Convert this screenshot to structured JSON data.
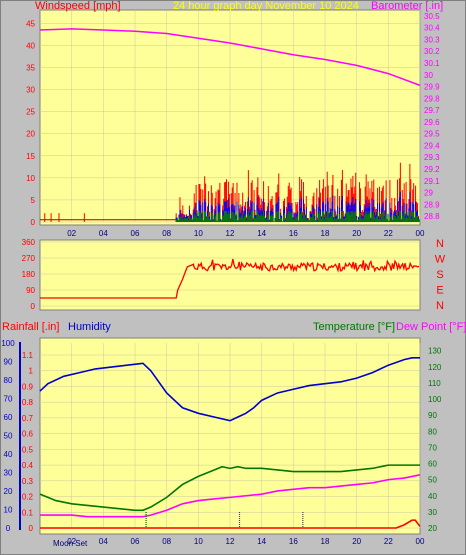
{
  "header": {
    "windspeed_label": "Windspeed [mph]",
    "title": "24 hour graph day   November 10 2024",
    "barometer_label": "Barometer [.in]"
  },
  "footer": {
    "moon_label": "Moon Set"
  },
  "lower_header": {
    "rainfall_label": "Rainfall [.in]",
    "humidity_label": "Humidity",
    "temperature_label": "Temperature [°F]",
    "dewpoint_label": "Dew Point [°F]"
  },
  "colors": {
    "plot_bg": "#ffff99",
    "wind_red": "#ff0000",
    "wind_blue": "#0000ff",
    "wind_green": "#008000",
    "barometer": "#ff00ff",
    "title_yellow": "#ffff00",
    "humidity": "#0000cc",
    "temperature": "#007700",
    "dewpoint": "#ff00ff",
    "frame": "#c0c0c0"
  },
  "chart_data": [
    {
      "type": "line",
      "x_ticks": [
        "02",
        "04",
        "06",
        "08",
        "10",
        "12",
        "14",
        "16",
        "18",
        "20",
        "22",
        "00"
      ],
      "y_left_ticks": [
        0,
        5,
        10,
        15,
        20,
        25,
        30,
        35,
        40,
        45
      ],
      "y_left_range": [
        0,
        48
      ],
      "y_right_ticks": [
        "28.8",
        "28.9",
        "29",
        "29.1",
        "29.2",
        "29.3",
        "29.4",
        "29.5",
        "29.6",
        "29.7",
        "29.8",
        "29.9",
        "30",
        "30.1",
        "30.2",
        "30.3",
        "30.4",
        "30.5"
      ],
      "y_right_range": [
        28.75,
        30.55
      ],
      "series": [
        {
          "label": "Windspeed [mph]",
          "axis": "left",
          "kind": "wind_gust"
        },
        {
          "label": "Barometer [.in]",
          "axis": "right",
          "x": [
            0,
            2,
            4,
            6,
            8,
            10,
            12,
            14,
            16,
            18,
            20,
            22,
            24
          ],
          "values": [
            30.38,
            30.39,
            30.38,
            30.37,
            30.35,
            30.31,
            30.27,
            30.22,
            30.17,
            30.13,
            30.08,
            30.01,
            29.91
          ]
        }
      ]
    },
    {
      "type": "line",
      "y_left_ticks": [
        0,
        90,
        180,
        270,
        360
      ],
      "y_left_range": [
        0,
        360
      ],
      "y_right_labels": [
        "N",
        "W",
        "S",
        "E",
        "N"
      ],
      "series": [
        {
          "label": "Wind direction",
          "x": [
            0,
            8.6,
            8.7,
            9.0,
            9.3,
            9.7,
            24
          ],
          "values": [
            45,
            45,
            90,
            150,
            220,
            235,
            220
          ]
        }
      ]
    },
    {
      "type": "line",
      "x_ticks": [
        "02",
        "04",
        "06",
        "08",
        "10",
        "12",
        "14",
        "16",
        "18",
        "20",
        "22",
        "00"
      ],
      "y_rain_ticks": [
        0,
        0.1,
        0.2,
        0.3,
        0.4,
        0.5,
        0.6,
        0.7,
        0.8,
        0.9,
        1,
        1.1
      ],
      "y_humidity_ticks": [
        0,
        10,
        20,
        30,
        40,
        50,
        60,
        70,
        80,
        90,
        100
      ],
      "y_temp_ticks": [
        20,
        30,
        40,
        50,
        60,
        70,
        80,
        90,
        100,
        110,
        120,
        130
      ],
      "y_temp_range": [
        20,
        136
      ],
      "series": [
        {
          "label": "Humidity",
          "axis": "humidity",
          "x": [
            0,
            0.5,
            1.5,
            2.5,
            3.5,
            4.5,
            5.5,
            6.5,
            7,
            8,
            9,
            10,
            11,
            12,
            12.5,
            13,
            13.5,
            14,
            15,
            16,
            17,
            18,
            19,
            20,
            21,
            22,
            23,
            23.5,
            24
          ],
          "values": [
            74,
            78,
            82,
            84,
            86,
            87,
            88,
            89,
            85,
            73,
            65,
            62,
            60,
            58,
            60,
            62,
            65,
            69,
            73,
            75,
            77,
            78,
            79,
            81,
            84,
            88,
            91,
            92,
            92
          ]
        },
        {
          "label": "Temperature [°F]",
          "axis": "temp",
          "x": [
            0,
            1,
            2,
            3,
            4,
            5,
            6,
            6.5,
            7,
            8,
            9,
            10,
            11,
            11.5,
            12,
            12.5,
            13,
            14,
            15,
            16,
            17,
            18,
            19,
            20,
            21,
            22,
            23,
            24
          ],
          "values": [
            41,
            37,
            35,
            34,
            33,
            32,
            31,
            31,
            33,
            39,
            47,
            52,
            56,
            58,
            57,
            58,
            57,
            57,
            56,
            55,
            55,
            55,
            55,
            56,
            57,
            59,
            59,
            59
          ]
        },
        {
          "label": "Dew Point [°F]",
          "axis": "temp",
          "x": [
            0,
            1,
            2,
            3,
            4,
            5,
            6,
            6.5,
            7,
            8,
            9,
            10,
            11,
            12,
            13,
            14,
            15,
            16,
            17,
            18,
            19,
            20,
            21,
            22,
            23,
            24
          ],
          "values": [
            28,
            28,
            28,
            27,
            27,
            27,
            27,
            27,
            28,
            31,
            35,
            37,
            38,
            39,
            40,
            41,
            43,
            44,
            45,
            45,
            46,
            47,
            48,
            50,
            51,
            53
          ]
        },
        {
          "label": "Rainfall [.in]",
          "axis": "rain",
          "x": [
            0,
            22.5,
            23,
            23.5,
            23.7,
            24
          ],
          "values": [
            0,
            0,
            0.02,
            0.05,
            0.05,
            0.01
          ]
        }
      ]
    }
  ]
}
